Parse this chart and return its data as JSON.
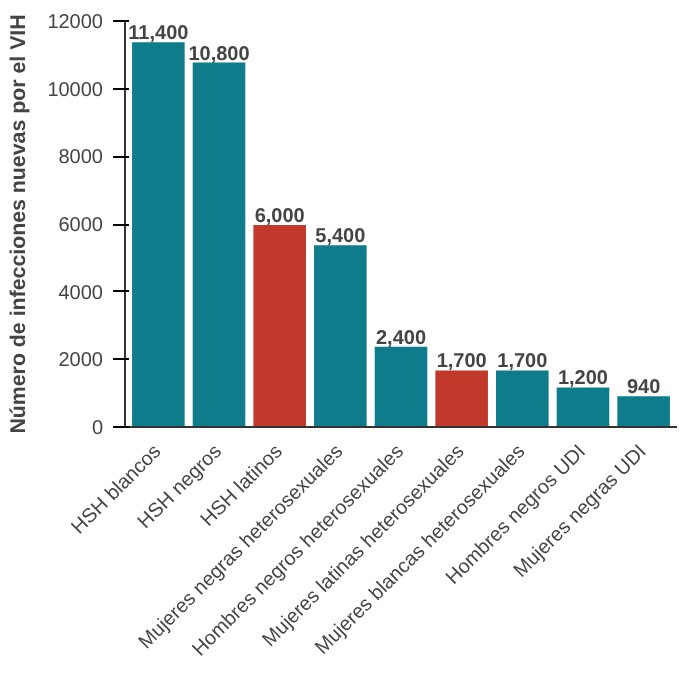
{
  "chart_data": {
    "type": "bar",
    "ylabel": "Número de infecciones nuevas por el VIH",
    "categories": [
      "HSH blancos",
      "HSH negros",
      "HSH latinos",
      "Mujeres negras heterosexuales",
      "Hombres negros heterosexuales",
      "Mujeres latinas heterosexuales",
      "Mujeres blancas heterosexuales",
      "Hombres negros UDI",
      "Mujeres negras UDI"
    ],
    "values": [
      11400,
      10800,
      6000,
      5400,
      2400,
      1700,
      1700,
      1200,
      940
    ],
    "value_labels": [
      "11,400",
      "10,800",
      "6,000",
      "5,400",
      "2,400",
      "1,700",
      "1,700",
      "1,200",
      "940"
    ],
    "colors": [
      "#0f7c8c",
      "#0f7c8c",
      "#c0392b",
      "#0f7c8c",
      "#0f7c8c",
      "#c0392b",
      "#0f7c8c",
      "#0f7c8c",
      "#0f7c8c"
    ],
    "ylim": [
      0,
      12000
    ],
    "yticks": [
      0,
      2000,
      4000,
      6000,
      8000,
      10000,
      12000
    ],
    "grid": false
  }
}
